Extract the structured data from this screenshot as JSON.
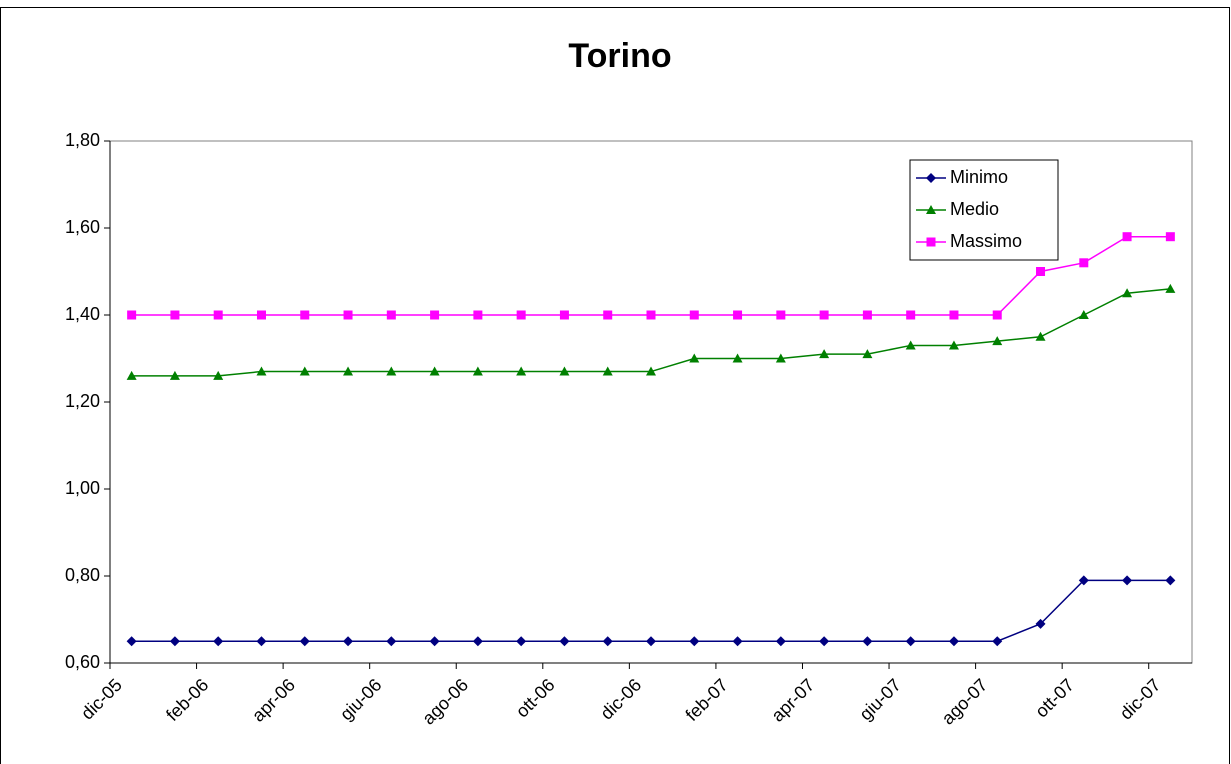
{
  "chart_data": {
    "type": "line",
    "title": "Torino",
    "categories": [
      "dic-05",
      null,
      "feb-06",
      null,
      "apr-06",
      null,
      "giu-06",
      null,
      "ago-06",
      null,
      "ott-06",
      null,
      "dic-06",
      null,
      "feb-07",
      null,
      "apr-07",
      null,
      "giu-07",
      null,
      "ago-07",
      null,
      "ott-07",
      null,
      "dic-07"
    ],
    "series": [
      {
        "name": "Minimo",
        "color": "#000080",
        "marker": "diamond",
        "values": [
          0.65,
          0.65,
          0.65,
          0.65,
          0.65,
          0.65,
          0.65,
          0.65,
          0.65,
          0.65,
          0.65,
          0.65,
          0.65,
          0.65,
          0.65,
          0.65,
          0.65,
          0.65,
          0.65,
          0.65,
          0.65,
          0.69,
          0.79,
          0.79,
          0.79
        ]
      },
      {
        "name": "Medio",
        "color": "#008000",
        "marker": "triangle",
        "values": [
          1.26,
          1.26,
          1.26,
          1.27,
          1.27,
          1.27,
          1.27,
          1.27,
          1.27,
          1.27,
          1.27,
          1.27,
          1.27,
          1.3,
          1.3,
          1.3,
          1.31,
          1.31,
          1.33,
          1.33,
          1.34,
          1.35,
          1.4,
          1.45,
          1.46
        ]
      },
      {
        "name": "Massimo",
        "color": "#ff00ff",
        "marker": "square",
        "values": [
          1.4,
          1.4,
          1.4,
          1.4,
          1.4,
          1.4,
          1.4,
          1.4,
          1.4,
          1.4,
          1.4,
          1.4,
          1.4,
          1.4,
          1.4,
          1.4,
          1.4,
          1.4,
          1.4,
          1.4,
          1.4,
          1.5,
          1.52,
          1.58,
          1.58
        ]
      }
    ],
    "ylim": [
      0.6,
      1.8
    ],
    "yticks": [
      {
        "value": 0.6,
        "label": "0,60"
      },
      {
        "value": 0.8,
        "label": "0,80"
      },
      {
        "value": 1.0,
        "label": "1,00"
      },
      {
        "value": 1.2,
        "label": "1,20"
      },
      {
        "value": 1.4,
        "label": "1,40"
      },
      {
        "value": 1.6,
        "label": "1,60"
      },
      {
        "value": 1.8,
        "label": "1,80"
      }
    ],
    "grid": false,
    "legend": "top-right"
  }
}
